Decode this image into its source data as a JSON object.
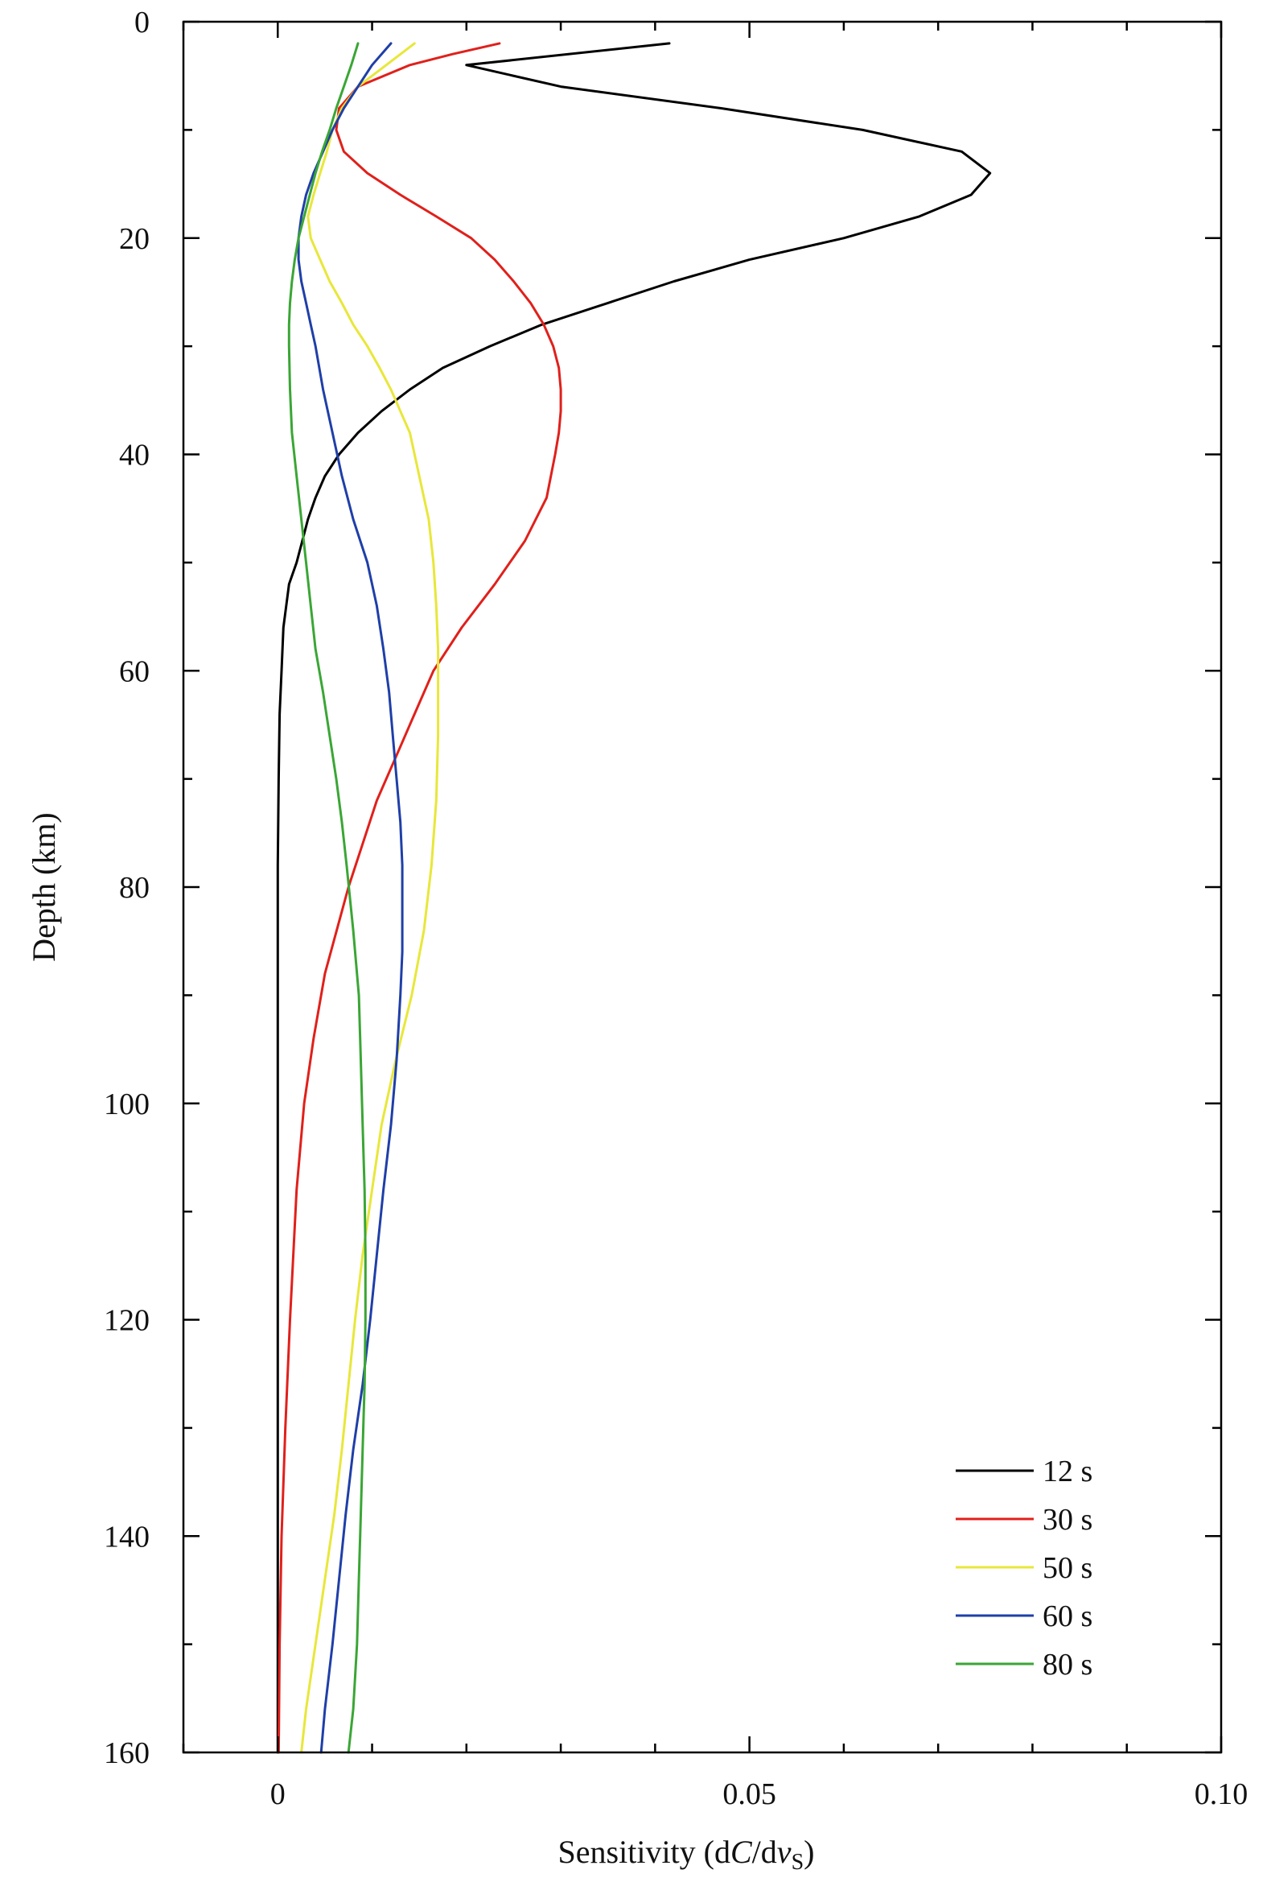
{
  "chart_data": {
    "type": "line",
    "xlabel": "Sensitivity (dC/dvS)",
    "xlabel_parts": {
      "prefix": "Sensitivity (d",
      "c_italic": "C",
      "slash_d": "/d",
      "v_italic": "v",
      "sub": "S",
      "suffix": ")"
    },
    "ylabel": "Depth (km)",
    "xlim": [
      -0.01,
      0.1
    ],
    "ylim": [
      0,
      160
    ],
    "y_inverted": true,
    "x_major_ticks": [
      0,
      0.05,
      0.1
    ],
    "x_tick_labels": [
      "0",
      "0.05",
      "0.10"
    ],
    "x_minor_ticks": [
      -0.01,
      0.01,
      0.02,
      0.03,
      0.04,
      0.06,
      0.07,
      0.08,
      0.09
    ],
    "y_major_ticks": [
      0,
      20,
      40,
      60,
      80,
      100,
      120,
      140,
      160
    ],
    "y_tick_labels": [
      "0",
      "20",
      "40",
      "60",
      "80",
      "100",
      "120",
      "140",
      "160"
    ],
    "y_minor_ticks": [
      10,
      30,
      50,
      70,
      90,
      110,
      130,
      150
    ],
    "grid": false,
    "legend_position": "bottom-right",
    "series": [
      {
        "name": "12 s",
        "color": "#000000",
        "points": [
          [
            0.0415,
            2
          ],
          [
            0.02,
            4
          ],
          [
            0.03,
            6
          ],
          [
            0.047,
            8
          ],
          [
            0.062,
            10
          ],
          [
            0.0725,
            12
          ],
          [
            0.0755,
            14
          ],
          [
            0.0735,
            16
          ],
          [
            0.068,
            18
          ],
          [
            0.06,
            20
          ],
          [
            0.05,
            22
          ],
          [
            0.042,
            24
          ],
          [
            0.035,
            26
          ],
          [
            0.028,
            28
          ],
          [
            0.0225,
            30
          ],
          [
            0.0175,
            32
          ],
          [
            0.014,
            34
          ],
          [
            0.011,
            36
          ],
          [
            0.0085,
            38
          ],
          [
            0.0065,
            40
          ],
          [
            0.005,
            42
          ],
          [
            0.004,
            44
          ],
          [
            0.0032,
            46
          ],
          [
            0.0026,
            48
          ],
          [
            0.002,
            50
          ],
          [
            0.0012,
            52
          ],
          [
            0.0006,
            56
          ],
          [
            0.0004,
            60
          ],
          [
            0.0002,
            64
          ],
          [
            0.0001,
            70
          ],
          [
            0.0,
            78
          ],
          [
            0.0,
            100
          ],
          [
            0.0,
            130
          ],
          [
            0.0,
            160
          ]
        ]
      },
      {
        "name": "30 s",
        "color": "#e0201b",
        "points": [
          [
            0.0235,
            2
          ],
          [
            0.0185,
            3
          ],
          [
            0.014,
            4
          ],
          [
            0.0085,
            6
          ],
          [
            0.0065,
            8
          ],
          [
            0.0062,
            10
          ],
          [
            0.007,
            12
          ],
          [
            0.0095,
            14
          ],
          [
            0.013,
            16
          ],
          [
            0.0168,
            18
          ],
          [
            0.0205,
            20
          ],
          [
            0.023,
            22
          ],
          [
            0.025,
            24
          ],
          [
            0.0268,
            26
          ],
          [
            0.0282,
            28
          ],
          [
            0.0292,
            30
          ],
          [
            0.0298,
            32
          ],
          [
            0.03,
            34
          ],
          [
            0.03,
            36
          ],
          [
            0.0298,
            38
          ],
          [
            0.0294,
            40
          ],
          [
            0.0285,
            44
          ],
          [
            0.0262,
            48
          ],
          [
            0.023,
            52
          ],
          [
            0.0195,
            56
          ],
          [
            0.0165,
            60
          ],
          [
            0.0145,
            64
          ],
          [
            0.0125,
            68
          ],
          [
            0.0105,
            72
          ],
          [
            0.009,
            76
          ],
          [
            0.0075,
            80
          ],
          [
            0.005,
            88
          ],
          [
            0.0038,
            94
          ],
          [
            0.0028,
            100
          ],
          [
            0.002,
            108
          ],
          [
            0.0013,
            120
          ],
          [
            0.0008,
            130
          ],
          [
            0.0004,
            140
          ],
          [
            0.0002,
            150
          ],
          [
            0.0001,
            160
          ]
        ]
      },
      {
        "name": "50 s",
        "color": "#e8e73a",
        "points": [
          [
            0.0145,
            2
          ],
          [
            0.0115,
            4
          ],
          [
            0.0085,
            6
          ],
          [
            0.0068,
            8
          ],
          [
            0.0058,
            10
          ],
          [
            0.0052,
            12
          ],
          [
            0.0045,
            14
          ],
          [
            0.0038,
            16
          ],
          [
            0.0032,
            18
          ],
          [
            0.0035,
            20
          ],
          [
            0.0045,
            22
          ],
          [
            0.0055,
            24
          ],
          [
            0.0068,
            26
          ],
          [
            0.008,
            28
          ],
          [
            0.0095,
            30
          ],
          [
            0.0108,
            32
          ],
          [
            0.012,
            34
          ],
          [
            0.013,
            36
          ],
          [
            0.014,
            38
          ],
          [
            0.015,
            42
          ],
          [
            0.016,
            46
          ],
          [
            0.0165,
            50
          ],
          [
            0.0168,
            54
          ],
          [
            0.017,
            58
          ],
          [
            0.017,
            66
          ],
          [
            0.0168,
            72
          ],
          [
            0.0163,
            78
          ],
          [
            0.0155,
            84
          ],
          [
            0.0142,
            90
          ],
          [
            0.0125,
            96
          ],
          [
            0.011,
            102
          ],
          [
            0.01,
            108
          ],
          [
            0.009,
            114
          ],
          [
            0.0082,
            120
          ],
          [
            0.0075,
            126
          ],
          [
            0.0068,
            132
          ],
          [
            0.006,
            138
          ],
          [
            0.005,
            144
          ],
          [
            0.004,
            150
          ],
          [
            0.003,
            156
          ],
          [
            0.0025,
            160
          ]
        ]
      },
      {
        "name": "60 s",
        "color": "#1f3fa8",
        "points": [
          [
            0.012,
            2
          ],
          [
            0.01,
            4
          ],
          [
            0.0085,
            6
          ],
          [
            0.007,
            8
          ],
          [
            0.0058,
            10
          ],
          [
            0.0048,
            12
          ],
          [
            0.0038,
            14
          ],
          [
            0.003,
            16
          ],
          [
            0.0025,
            18
          ],
          [
            0.0022,
            20
          ],
          [
            0.0022,
            22
          ],
          [
            0.0025,
            24
          ],
          [
            0.003,
            26
          ],
          [
            0.0035,
            28
          ],
          [
            0.004,
            30
          ],
          [
            0.0048,
            34
          ],
          [
            0.0058,
            38
          ],
          [
            0.0068,
            42
          ],
          [
            0.008,
            46
          ],
          [
            0.0095,
            50
          ],
          [
            0.0105,
            54
          ],
          [
            0.0112,
            58
          ],
          [
            0.0118,
            62
          ],
          [
            0.0122,
            66
          ],
          [
            0.0126,
            70
          ],
          [
            0.013,
            74
          ],
          [
            0.0132,
            78
          ],
          [
            0.0132,
            82
          ],
          [
            0.0132,
            86
          ],
          [
            0.013,
            90
          ],
          [
            0.0126,
            96
          ],
          [
            0.012,
            102
          ],
          [
            0.0112,
            108
          ],
          [
            0.0105,
            114
          ],
          [
            0.0098,
            120
          ],
          [
            0.009,
            126
          ],
          [
            0.008,
            132
          ],
          [
            0.0072,
            138
          ],
          [
            0.0065,
            144
          ],
          [
            0.0058,
            150
          ],
          [
            0.005,
            156
          ],
          [
            0.0046,
            160
          ]
        ]
      },
      {
        "name": "80 s",
        "color": "#3aa635",
        "points": [
          [
            0.0085,
            2
          ],
          [
            0.0078,
            4
          ],
          [
            0.007,
            6
          ],
          [
            0.0062,
            8
          ],
          [
            0.0055,
            10
          ],
          [
            0.0047,
            12
          ],
          [
            0.004,
            14
          ],
          [
            0.0034,
            16
          ],
          [
            0.0028,
            18
          ],
          [
            0.0022,
            20
          ],
          [
            0.0018,
            22
          ],
          [
            0.0015,
            24
          ],
          [
            0.0013,
            26
          ],
          [
            0.0012,
            28
          ],
          [
            0.0012,
            30
          ],
          [
            0.0013,
            34
          ],
          [
            0.0015,
            38
          ],
          [
            0.002,
            42
          ],
          [
            0.0025,
            46
          ],
          [
            0.003,
            50
          ],
          [
            0.0035,
            54
          ],
          [
            0.004,
            58
          ],
          [
            0.0048,
            62
          ],
          [
            0.0055,
            66
          ],
          [
            0.0062,
            70
          ],
          [
            0.0068,
            74
          ],
          [
            0.0073,
            78
          ],
          [
            0.008,
            84
          ],
          [
            0.0086,
            90
          ],
          [
            0.0088,
            96
          ],
          [
            0.009,
            102
          ],
          [
            0.0092,
            108
          ],
          [
            0.0093,
            114
          ],
          [
            0.0093,
            120
          ],
          [
            0.0092,
            126
          ],
          [
            0.009,
            132
          ],
          [
            0.0088,
            138
          ],
          [
            0.0086,
            144
          ],
          [
            0.0084,
            150
          ],
          [
            0.008,
            156
          ],
          [
            0.0075,
            160
          ]
        ]
      }
    ]
  }
}
